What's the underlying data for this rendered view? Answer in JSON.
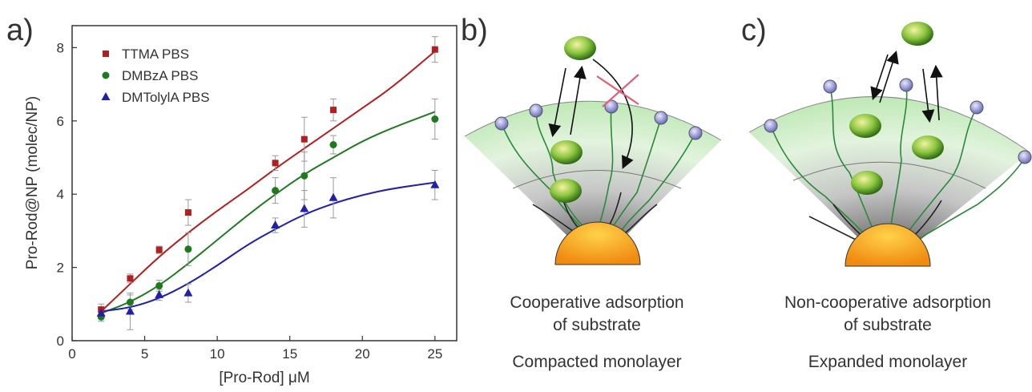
{
  "panels": {
    "a": "a)",
    "b": "b)",
    "c": "c)"
  },
  "chart_data": {
    "type": "scatter",
    "xlabel": "[Pro-Rod] μM",
    "ylabel": "Pro-Rod@NP (molec/NP)",
    "xlim": [
      0,
      26.5
    ],
    "ylim": [
      0,
      8.6
    ],
    "xticks": [
      0,
      5,
      10,
      15,
      20,
      25
    ],
    "yticks": [
      0,
      2,
      4,
      6,
      8
    ],
    "x_tick_labels": [
      "0",
      "5",
      "10",
      "15",
      "20",
      "25"
    ],
    "y_tick_labels": [
      "0",
      "2",
      "4",
      "6",
      "8"
    ],
    "legend_position": "top-left",
    "grid": false,
    "fit_lines": true,
    "series": [
      {
        "name": "TTMA PBS",
        "color": "#b02020",
        "marker": "square",
        "x": [
          2,
          4,
          6,
          8,
          14,
          16,
          18,
          25
        ],
        "y": [
          0.85,
          1.7,
          2.48,
          3.5,
          4.85,
          5.5,
          6.3,
          7.95
        ],
        "err": [
          0.15,
          0.12,
          0.1,
          0.35,
          0.2,
          0.6,
          0.3,
          0.35
        ],
        "fit": [
          [
            2,
            0.8
          ],
          [
            4,
            1.55
          ],
          [
            6,
            2.3
          ],
          [
            8,
            2.95
          ],
          [
            10,
            3.55
          ],
          [
            12,
            4.1
          ],
          [
            14,
            4.7
          ],
          [
            16,
            5.25
          ],
          [
            18,
            5.8
          ],
          [
            20,
            6.35
          ],
          [
            22,
            6.9
          ],
          [
            25,
            7.9
          ]
        ]
      },
      {
        "name": "DMBzA PBS",
        "color": "#1f7a1f",
        "marker": "circle",
        "x": [
          2,
          4,
          6,
          8,
          14,
          16,
          18,
          25
        ],
        "y": [
          0.65,
          1.05,
          1.5,
          2.5,
          4.1,
          4.5,
          5.35,
          6.05
        ],
        "err": [
          0.12,
          0.2,
          0.15,
          0.45,
          0.35,
          0.65,
          0.25,
          0.55
        ],
        "fit": [
          [
            2,
            0.75
          ],
          [
            4,
            1.05
          ],
          [
            6,
            1.5
          ],
          [
            8,
            2.1
          ],
          [
            10,
            2.75
          ],
          [
            12,
            3.4
          ],
          [
            14,
            4.0
          ],
          [
            16,
            4.55
          ],
          [
            18,
            5.0
          ],
          [
            20,
            5.45
          ],
          [
            22,
            5.8
          ],
          [
            25,
            6.25
          ]
        ]
      },
      {
        "name": "DMTolylA PBS",
        "color": "#2020a8",
        "marker": "triangle",
        "x": [
          2,
          4,
          6,
          8,
          14,
          16,
          18,
          25
        ],
        "y": [
          0.75,
          0.8,
          1.25,
          1.3,
          3.15,
          3.6,
          3.9,
          4.25
        ],
        "err": [
          0.15,
          0.5,
          0.15,
          0.25,
          0.2,
          0.5,
          0.55,
          0.4
        ],
        "fit": [
          [
            2,
            0.8
          ],
          [
            4,
            0.9
          ],
          [
            6,
            1.15
          ],
          [
            8,
            1.55
          ],
          [
            10,
            2.05
          ],
          [
            12,
            2.6
          ],
          [
            14,
            3.05
          ],
          [
            16,
            3.45
          ],
          [
            18,
            3.75
          ],
          [
            20,
            3.98
          ],
          [
            22,
            4.15
          ],
          [
            25,
            4.32
          ]
        ]
      }
    ]
  },
  "diagram_b": {
    "caption_line1": "Cooperative adsorption",
    "caption_line2": "of substrate",
    "caption_line3": "Compacted monolayer"
  },
  "diagram_c": {
    "caption_line1": "Non-cooperative adsorption",
    "caption_line2": "of substrate",
    "caption_line3": "Expanded monolayer"
  },
  "colors": {
    "core": "#f5a623",
    "shell_green": "#8fd68a",
    "ligand_head": "#8f8fd0",
    "substrate": "#7ab648",
    "cross": "#e0607a"
  }
}
